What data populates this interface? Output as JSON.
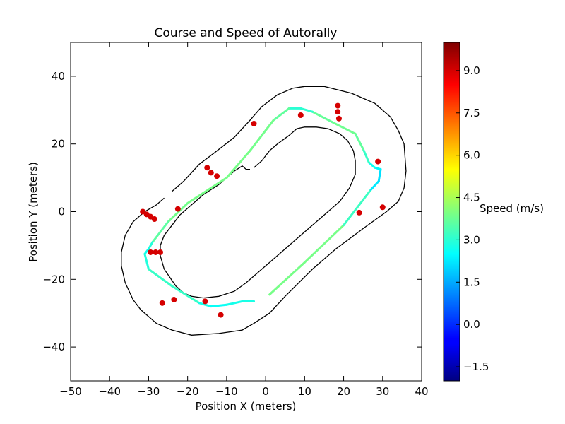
{
  "chart_data": {
    "type": "scatter",
    "title": "Course and Speed of Autorally",
    "xlabel": "Position X (meters)",
    "ylabel": "Position Y (meters)",
    "xlim": [
      -50,
      40
    ],
    "ylim": [
      -50,
      50
    ],
    "x_ticks": [
      -50,
      -40,
      -30,
      -20,
      -10,
      0,
      10,
      20,
      30,
      40
    ],
    "y_ticks": [
      -40,
      -20,
      0,
      20,
      40
    ],
    "x_tick_labels": [
      "−50",
      "−40",
      "−30",
      "−20",
      "−10",
      "0",
      "10",
      "20",
      "30",
      "40"
    ],
    "y_tick_labels": [
      "−40",
      "−20",
      "0",
      "20",
      "40"
    ],
    "grid": false,
    "colorbar": {
      "label": "Speed (m/s)",
      "min": -2.0,
      "max": 10.0,
      "ticks": [
        -1.5,
        0.0,
        1.5,
        3.0,
        4.5,
        6.0,
        7.5,
        9.0
      ],
      "tick_labels": [
        "−1.5",
        "0.0",
        "1.5",
        "3.0",
        "4.5",
        "6.0",
        "7.5",
        "9.0"
      ],
      "colormap": "jet"
    },
    "track_outer": [
      [
        -24,
        6
      ],
      [
        -21,
        9
      ],
      [
        -17,
        14
      ],
      [
        -13,
        17.5
      ],
      [
        -8,
        22
      ],
      [
        -4,
        27
      ],
      [
        -1,
        31
      ],
      [
        3,
        34.5
      ],
      [
        7,
        36.5
      ],
      [
        10,
        37
      ],
      [
        15,
        37
      ],
      [
        22,
        35
      ],
      [
        28,
        32
      ],
      [
        32,
        28
      ],
      [
        34,
        24
      ],
      [
        35.5,
        20
      ],
      [
        36,
        12
      ],
      [
        35.5,
        7
      ],
      [
        34,
        3
      ],
      [
        31,
        0
      ],
      [
        25,
        -5
      ],
      [
        18,
        -11
      ],
      [
        12,
        -17
      ],
      [
        5,
        -25
      ],
      [
        1,
        -30
      ],
      [
        -3,
        -33
      ],
      [
        -6,
        -35
      ],
      [
        -12,
        -36
      ],
      [
        -19,
        -36.5
      ],
      [
        -24,
        -35
      ],
      [
        -28,
        -33
      ],
      [
        -32,
        -29
      ],
      [
        -34,
        -26
      ],
      [
        -36,
        -21
      ],
      [
        -37,
        -16
      ],
      [
        -37,
        -12
      ],
      [
        -36,
        -7
      ],
      [
        -34,
        -3
      ],
      [
        -31,
        0
      ],
      [
        -28,
        2
      ],
      [
        -26,
        4
      ]
    ],
    "track_inner": [
      [
        -3,
        13
      ],
      [
        -1,
        15
      ],
      [
        1,
        18
      ],
      [
        3,
        20
      ],
      [
        6,
        22.5
      ],
      [
        8,
        24.5
      ],
      [
        10,
        25
      ],
      [
        13,
        25
      ],
      [
        16,
        24.5
      ],
      [
        19,
        23
      ],
      [
        21,
        21
      ],
      [
        22.5,
        18
      ],
      [
        23,
        15
      ],
      [
        23,
        11
      ],
      [
        21.5,
        7
      ],
      [
        19,
        3
      ],
      [
        14,
        -2
      ],
      [
        8,
        -8
      ],
      [
        2,
        -14
      ],
      [
        -2,
        -18
      ],
      [
        -5,
        -21
      ],
      [
        -8,
        -23.5
      ],
      [
        -12,
        -25
      ],
      [
        -16,
        -25.5
      ],
      [
        -19,
        -25
      ],
      [
        -21,
        -24
      ],
      [
        -23,
        -22
      ],
      [
        -26,
        -17
      ],
      [
        -27,
        -13
      ],
      [
        -27,
        -10
      ],
      [
        -26,
        -7
      ],
      [
        -24,
        -4
      ],
      [
        -22,
        -1
      ],
      [
        -19,
        2
      ],
      [
        -16,
        5
      ],
      [
        -12,
        8
      ],
      [
        -10,
        10
      ],
      [
        -8,
        12
      ],
      [
        -6,
        13.5
      ],
      [
        -5,
        12.5
      ],
      [
        -4,
        12.5
      ]
    ],
    "path": [
      {
        "x": 1,
        "y": -24.5,
        "speed": 3.9
      },
      {
        "x": 10,
        "y": -15,
        "speed": 3.9
      },
      {
        "x": 20,
        "y": -4,
        "speed": 3.9
      },
      {
        "x": 27,
        "y": 6.5,
        "speed": 2.5
      },
      {
        "x": 29,
        "y": 9,
        "speed": 2.0
      },
      {
        "x": 29.5,
        "y": 12.5,
        "speed": 2.3
      },
      {
        "x": 28,
        "y": 13,
        "speed": 2.5
      },
      {
        "x": 26.5,
        "y": 14.5,
        "speed": 2.8
      },
      {
        "x": 25,
        "y": 18.5,
        "speed": 3.5
      },
      {
        "x": 23,
        "y": 23,
        "speed": 3.8
      },
      {
        "x": 17,
        "y": 26.5,
        "speed": 3.8
      },
      {
        "x": 12,
        "y": 29.5,
        "speed": 3.6
      },
      {
        "x": 9,
        "y": 30.5,
        "speed": 2.5
      },
      {
        "x": 6,
        "y": 30.5,
        "speed": 3.5
      },
      {
        "x": 2,
        "y": 27,
        "speed": 3.8
      },
      {
        "x": -4,
        "y": 18,
        "speed": 3.9
      },
      {
        "x": -10,
        "y": 10,
        "speed": 3.9
      },
      {
        "x": -20,
        "y": 2.5,
        "speed": 3.9
      },
      {
        "x": -25,
        "y": -3,
        "speed": 3.8
      },
      {
        "x": -29,
        "y": -9,
        "speed": 3.4
      },
      {
        "x": -30,
        "y": -11,
        "speed": 2.5
      },
      {
        "x": -31,
        "y": -12.5,
        "speed": 2.8
      },
      {
        "x": -30,
        "y": -17,
        "speed": 3.0
      },
      {
        "x": -24,
        "y": -22,
        "speed": 3.3
      },
      {
        "x": -17,
        "y": -27,
        "speed": 3.0
      },
      {
        "x": -14,
        "y": -28,
        "speed": 2.5
      },
      {
        "x": -10,
        "y": -27.5,
        "speed": 2.7
      },
      {
        "x": -6,
        "y": -26.5,
        "speed": 2.8
      },
      {
        "x": -3,
        "y": -26.5,
        "speed": 2.8
      }
    ],
    "points": [
      {
        "x": -31.5,
        "y": 0,
        "speed": 9.0
      },
      {
        "x": -30.5,
        "y": -0.8,
        "speed": 9.0
      },
      {
        "x": -29.5,
        "y": -1.5,
        "speed": 9.0
      },
      {
        "x": -28.5,
        "y": -2.2,
        "speed": 9.0
      },
      {
        "x": -22.5,
        "y": 0.8,
        "speed": 9.0
      },
      {
        "x": -15,
        "y": 13,
        "speed": 9.0
      },
      {
        "x": -14,
        "y": 11.5,
        "speed": 9.0
      },
      {
        "x": -12.5,
        "y": 10.5,
        "speed": 9.0
      },
      {
        "x": -3,
        "y": 26,
        "speed": 9.0
      },
      {
        "x": 9,
        "y": 28.5,
        "speed": 9.0
      },
      {
        "x": 18.5,
        "y": 31.3,
        "speed": 9.0
      },
      {
        "x": 18.5,
        "y": 29.5,
        "speed": 9.0
      },
      {
        "x": 18.8,
        "y": 27.5,
        "speed": 9.0
      },
      {
        "x": 28.8,
        "y": 14.8,
        "speed": 9.0
      },
      {
        "x": 30,
        "y": 1.3,
        "speed": 9.0
      },
      {
        "x": 24,
        "y": -0.3,
        "speed": 9.0
      },
      {
        "x": -29.5,
        "y": -12,
        "speed": 9.0
      },
      {
        "x": -28.2,
        "y": -12,
        "speed": 9.0
      },
      {
        "x": -27,
        "y": -12,
        "speed": 9.0
      },
      {
        "x": -26.5,
        "y": -27,
        "speed": 9.0
      },
      {
        "x": -23.5,
        "y": -26,
        "speed": 9.0
      },
      {
        "x": -15.5,
        "y": -26.5,
        "speed": 9.0
      },
      {
        "x": -11.5,
        "y": -30.5,
        "speed": 9.0
      }
    ]
  }
}
